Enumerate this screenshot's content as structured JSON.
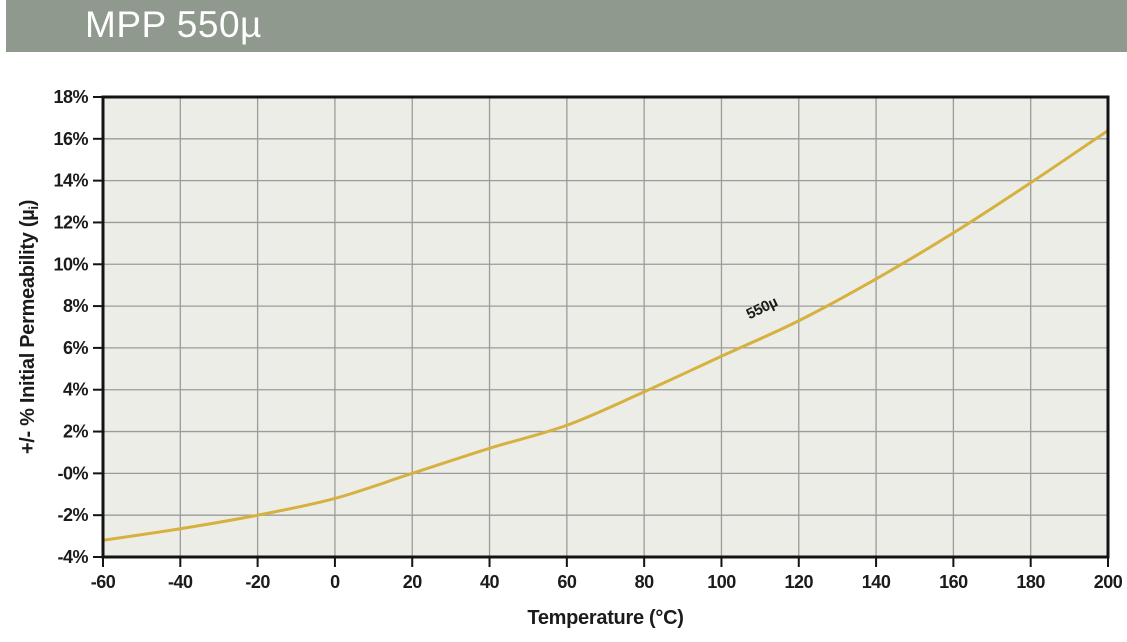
{
  "header": {
    "title": "MPP 550µ",
    "bg_color": "#8F998D",
    "text_color": "#FFFFFF"
  },
  "chart_data": {
    "type": "line",
    "title": "",
    "xlabel": "Temperature (°C)",
    "ylabel": "+/- % Initial Permeability (µi)",
    "ylabel_parts": {
      "main": "+/- % Initial Permeability (µ",
      "sub": "i",
      "close": ")"
    },
    "xlim": [
      -60,
      200
    ],
    "ylim": [
      -4,
      18
    ],
    "grid": true,
    "x_ticks": [
      -60,
      -40,
      -20,
      0,
      20,
      40,
      60,
      80,
      100,
      120,
      140,
      160,
      180,
      200
    ],
    "x_tick_labels": [
      "-60",
      "-40",
      "-20",
      "0",
      "20",
      "40",
      "60",
      "80",
      "100",
      "120",
      "140",
      "160",
      "180",
      "200"
    ],
    "y_ticks": [
      18,
      16,
      14,
      12,
      10,
      8,
      6,
      4,
      2,
      0,
      -2,
      -4
    ],
    "y_tick_labels": [
      "18%",
      "16%",
      "14%",
      "12%",
      "10%",
      "8%",
      "6%",
      "4%",
      "2%",
      "-0%",
      "-2%",
      "-4%"
    ],
    "x": [
      -60,
      -40,
      -20,
      0,
      20,
      40,
      60,
      80,
      100,
      120,
      140,
      160,
      180,
      200
    ],
    "series": [
      {
        "name": "550µ",
        "values": [
          -3.2,
          -2.65,
          -2.0,
          -1.2,
          0.0,
          1.2,
          2.3,
          3.9,
          5.6,
          7.3,
          9.3,
          11.5,
          13.9,
          16.4
        ],
        "color": "#D6B13F"
      }
    ],
    "annotation": {
      "text": "550µ",
      "x": 111,
      "y": 7.7,
      "rotation": -26
    },
    "colors": {
      "plot_bg": "#ECEDE7",
      "grid": "#9B9B99",
      "axis": "#141414",
      "text": "#1B1B1B"
    },
    "legend": "inline-curve-label"
  }
}
